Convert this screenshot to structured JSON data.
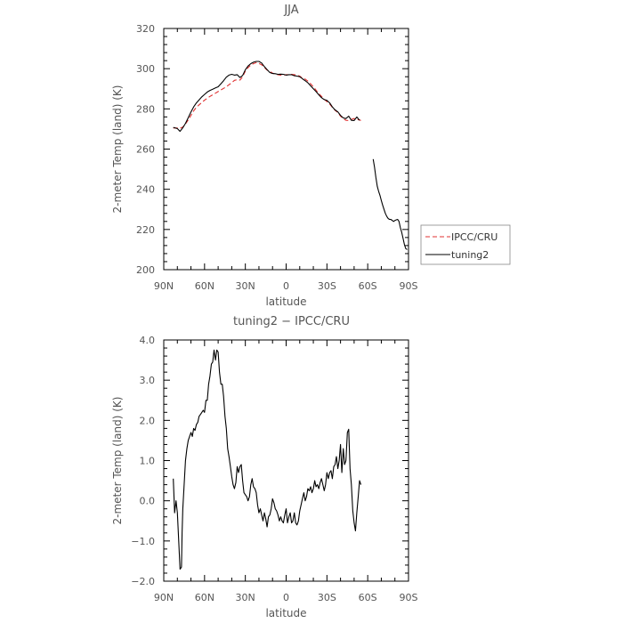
{
  "chart_data": [
    {
      "type": "line",
      "title": "JJA",
      "xlabel": "latitude",
      "ylabel": "2-meter Temp (land) (K)",
      "xlim": [
        90,
        -90
      ],
      "ylim": [
        200,
        320
      ],
      "x_ticks": [
        "90N",
        "60N",
        "30N",
        "0",
        "30S",
        "60S",
        "90S"
      ],
      "y_ticks": [
        "200",
        "220",
        "240",
        "260",
        "280",
        "300",
        "320"
      ],
      "legend": {
        "placement": "right",
        "entries": [
          "IPCC/CRU",
          "tuning2"
        ]
      },
      "series": [
        {
          "name": "IPCC/CRU",
          "color": "#e03030",
          "dashed": true,
          "x": [
            83,
            80,
            78,
            76,
            74,
            72,
            70,
            68,
            66,
            64,
            62,
            60,
            58,
            56,
            54,
            52,
            50,
            48,
            46,
            44,
            42,
            40,
            38,
            36,
            34,
            32,
            30,
            28,
            26,
            24,
            22,
            20,
            18,
            16,
            14,
            12,
            10,
            8,
            6,
            4,
            2,
            0,
            -2,
            -4,
            -6,
            -8,
            -10,
            -12,
            -14,
            -16,
            -18,
            -20,
            -22,
            -24,
            -26,
            -28,
            -30,
            -32,
            -34,
            -36,
            -38,
            -40,
            -42,
            -44,
            -46,
            -48,
            -50,
            -52,
            -54,
            -55
          ],
          "y": [
            270.5,
            270.5,
            270.3,
            271.0,
            272.5,
            274.5,
            276.8,
            279.0,
            280.8,
            282.0,
            283.2,
            284.3,
            285.3,
            286.2,
            287.0,
            287.8,
            288.6,
            289.4,
            290.2,
            291.0,
            292.0,
            293.0,
            294.2,
            294.5,
            294.3,
            296.0,
            298.8,
            300.5,
            301.8,
            302.5,
            303.0,
            302.6,
            302.0,
            300.5,
            299.3,
            298.6,
            297.8,
            297.3,
            297.0,
            296.8,
            296.8,
            297.0,
            297.0,
            297.2,
            297.0,
            296.7,
            296.3,
            295.3,
            294.8,
            293.8,
            292.5,
            291.0,
            289.3,
            287.6,
            286.2,
            284.8,
            283.6,
            282.4,
            280.8,
            279.3,
            278.2,
            276.4,
            275.2,
            274.3,
            274.2,
            274.8,
            275.2,
            274.8,
            274.5,
            274.2
          ]
        },
        {
          "name": "tuning2",
          "color": "#000000",
          "dashed": false,
          "segments": [
            {
              "x": [
                83,
                80,
                78,
                76,
                74,
                72,
                70,
                68,
                66,
                64,
                62,
                60,
                58,
                56,
                54,
                52,
                50,
                48,
                46,
                44,
                42,
                40,
                38,
                36,
                34,
                32,
                30,
                28,
                26,
                24,
                22,
                20,
                18,
                16,
                14,
                12,
                10,
                8,
                6,
                4,
                2,
                0,
                -2,
                -4,
                -6,
                -8,
                -10,
                -12,
                -14,
                -16,
                -18,
                -20,
                -22,
                -24,
                -26,
                -28,
                -30,
                -32,
                -34,
                -36,
                -38,
                -40,
                -42,
                -44,
                -46,
                -48,
                -50,
                -52,
                -54
              ],
              "y": [
                270.8,
                270.2,
                268.8,
                270.6,
                272.8,
                275.6,
                278.5,
                281.0,
                283.0,
                284.5,
                286.0,
                287.2,
                288.4,
                289.2,
                289.8,
                290.4,
                291.0,
                292.5,
                294.0,
                295.8,
                296.8,
                297.2,
                296.8,
                297.0,
                295.6,
                296.6,
                299.5,
                301.3,
                302.5,
                303.2,
                303.6,
                303.6,
                302.8,
                301.0,
                299.5,
                298.1,
                297.6,
                297.5,
                297.2,
                297.3,
                297.2,
                296.8,
                297.0,
                297.0,
                296.5,
                296.3,
                296.0,
                295.0,
                294.0,
                293.0,
                291.5,
                290.0,
                288.6,
                287.0,
                285.6,
                284.6,
                284.2,
                283.0,
                281.0,
                279.5,
                278.5,
                276.8,
                275.5,
                275.2,
                276.4,
                274.3,
                274.2,
                276.0,
                274.3
              ]
            },
            {
              "x": [
                -64,
                -65,
                -66,
                -67,
                -68,
                -69,
                -70,
                -71,
                -72,
                -73,
                -74,
                -75,
                -76,
                -77,
                -78,
                -79,
                -80,
                -81,
                -82,
                -83,
                -84,
                -85,
                -86,
                -87,
                -88,
                -89
              ],
              "y": [
                255.0,
                251.0,
                246.0,
                241.5,
                239.0,
                237.0,
                234.5,
                232.0,
                230.0,
                228.0,
                226.5,
                225.5,
                225.0,
                225.0,
                224.5,
                224.0,
                224.5,
                224.8,
                225.0,
                224.0,
                221.0,
                218.5,
                215.5,
                212.5,
                210.5,
                210.0
              ]
            }
          ]
        }
      ]
    },
    {
      "type": "line",
      "title": "tuning2 − IPCC/CRU",
      "xlabel": "latitude",
      "ylabel": "2-meter Temp (land) (K)",
      "xlim": [
        90,
        -90
      ],
      "ylim": [
        -2.0,
        4.0
      ],
      "x_ticks": [
        "90N",
        "60N",
        "30N",
        "0",
        "30S",
        "60S",
        "90S"
      ],
      "y_ticks": [
        "−2.0",
        "−1.0",
        "0.0",
        "1.0",
        "2.0",
        "3.0",
        "4.0"
      ],
      "series": [
        {
          "name": "tuning2 − IPCC/CRU",
          "color": "#000000",
          "x": [
            83,
            82,
            81,
            80,
            79,
            78,
            77,
            76.5,
            76,
            75,
            74,
            73,
            72,
            71,
            70,
            69,
            68,
            67,
            66,
            65,
            64,
            63,
            62,
            61,
            60,
            59,
            58,
            57,
            56,
            55,
            54,
            53,
            52,
            51,
            50,
            49,
            48,
            47,
            46,
            45,
            44,
            43,
            42,
            41,
            40,
            39,
            38,
            37,
            36,
            35,
            34,
            33,
            32,
            31,
            30,
            29,
            28,
            27,
            26,
            25,
            24,
            23,
            22,
            21,
            20,
            19,
            18,
            17,
            16,
            15,
            14,
            13,
            12,
            11,
            10,
            9,
            8,
            7,
            6,
            5,
            4,
            3,
            2,
            1,
            0,
            -1,
            -2,
            -3,
            -4,
            -5,
            -6,
            -7,
            -8,
            -9,
            -10,
            -11,
            -12,
            -13,
            -14,
            -15,
            -16,
            -17,
            -18,
            -19,
            -20,
            -21,
            -22,
            -23,
            -24,
            -25,
            -26,
            -27,
            -28,
            -29,
            -30,
            -31,
            -32,
            -33,
            -34,
            -35,
            -36,
            -37,
            -38,
            -39,
            -40,
            -41,
            -42,
            -43,
            -44,
            -45,
            -46,
            -47,
            -48,
            -49,
            -50,
            -51,
            -52,
            -53,
            -54,
            -55
          ],
          "y": [
            0.55,
            -0.3,
            0.0,
            -0.3,
            -1.0,
            -1.7,
            -1.65,
            -0.8,
            -0.2,
            0.4,
            1.0,
            1.3,
            1.5,
            1.6,
            1.7,
            1.6,
            1.8,
            1.75,
            1.9,
            1.95,
            2.1,
            2.15,
            2.2,
            2.25,
            2.2,
            2.5,
            2.5,
            2.9,
            3.1,
            3.4,
            3.45,
            3.75,
            3.5,
            3.75,
            3.7,
            3.2,
            2.9,
            2.9,
            2.6,
            2.1,
            1.8,
            1.3,
            1.1,
            0.85,
            0.6,
            0.4,
            0.3,
            0.45,
            0.85,
            0.7,
            0.85,
            0.9,
            0.5,
            0.2,
            0.15,
            0.1,
            0.0,
            0.1,
            0.4,
            0.55,
            0.35,
            0.3,
            0.2,
            -0.1,
            -0.3,
            -0.2,
            -0.35,
            -0.5,
            -0.3,
            -0.45,
            -0.65,
            -0.4,
            -0.35,
            -0.2,
            0.05,
            -0.05,
            -0.2,
            -0.25,
            -0.35,
            -0.5,
            -0.4,
            -0.5,
            -0.55,
            -0.35,
            -0.2,
            -0.55,
            -0.4,
            -0.3,
            -0.55,
            -0.5,
            -0.3,
            -0.55,
            -0.6,
            -0.5,
            -0.25,
            -0.1,
            0.05,
            0.2,
            0.0,
            0.1,
            0.3,
            0.25,
            0.35,
            0.2,
            0.3,
            0.5,
            0.35,
            0.4,
            0.3,
            0.45,
            0.55,
            0.4,
            0.25,
            0.4,
            0.7,
            0.55,
            0.7,
            0.75,
            0.55,
            0.85,
            0.9,
            1.1,
            0.8,
            1.0,
            1.4,
            0.7,
            1.3,
            0.9,
            1.0,
            1.7,
            1.78,
            0.8,
            0.4,
            -0.25,
            -0.55,
            -0.75,
            -0.3,
            0.1,
            0.5,
            0.4
          ]
        }
      ]
    }
  ]
}
